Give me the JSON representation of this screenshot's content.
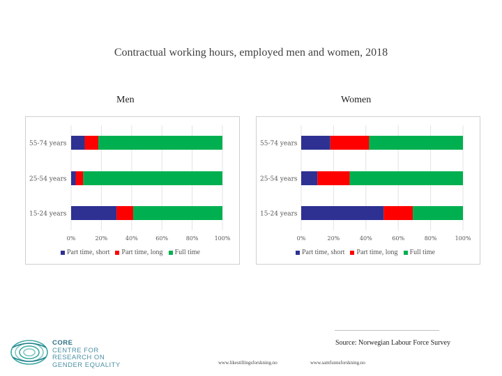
{
  "title": "Contractual working hours, employed men and women, 2018",
  "colors": {
    "part_short": "#2e3192",
    "part_long": "#ff0000",
    "full": "#00b050"
  },
  "chart_data": [
    {
      "type": "bar",
      "orientation": "horizontal",
      "stacked": "percent",
      "title": "Men",
      "categories": [
        "55-74 years",
        "25-54 years",
        "15-24 years"
      ],
      "series": [
        {
          "name": "Part time, short",
          "values": [
            9,
            3,
            30
          ]
        },
        {
          "name": "Part time, long",
          "values": [
            9,
            5,
            11
          ]
        },
        {
          "name": "Full time",
          "values": [
            82,
            92,
            59
          ]
        }
      ],
      "xlim": [
        0,
        100
      ],
      "xticks": [
        "0%",
        "20%",
        "40%",
        "60%",
        "80%",
        "100%"
      ],
      "legend_position": "bottom",
      "grid": true
    },
    {
      "type": "bar",
      "orientation": "horizontal",
      "stacked": "percent",
      "title": "Women",
      "categories": [
        "55-74 years",
        "25-54 years",
        "15-24 years"
      ],
      "series": [
        {
          "name": "Part time, short",
          "values": [
            18,
            10,
            51
          ]
        },
        {
          "name": "Part time, long",
          "values": [
            24,
            20,
            18
          ]
        },
        {
          "name": "Full time",
          "values": [
            58,
            70,
            31
          ]
        }
      ],
      "xlim": [
        0,
        100
      ],
      "xticks": [
        "0%",
        "20%",
        "40%",
        "60%",
        "80%",
        "100%"
      ],
      "legend_position": "bottom",
      "grid": true
    }
  ],
  "source": "Source: Norwegian Labour Force Survey",
  "urls": [
    "www.likestillingsforskning.no",
    "www.samfunnsforskning.no"
  ],
  "logo": {
    "line1": "CORE",
    "line2": "CENTRE FOR",
    "line3": "RESEARCH ON",
    "line4": "GENDER EQUALITY"
  }
}
